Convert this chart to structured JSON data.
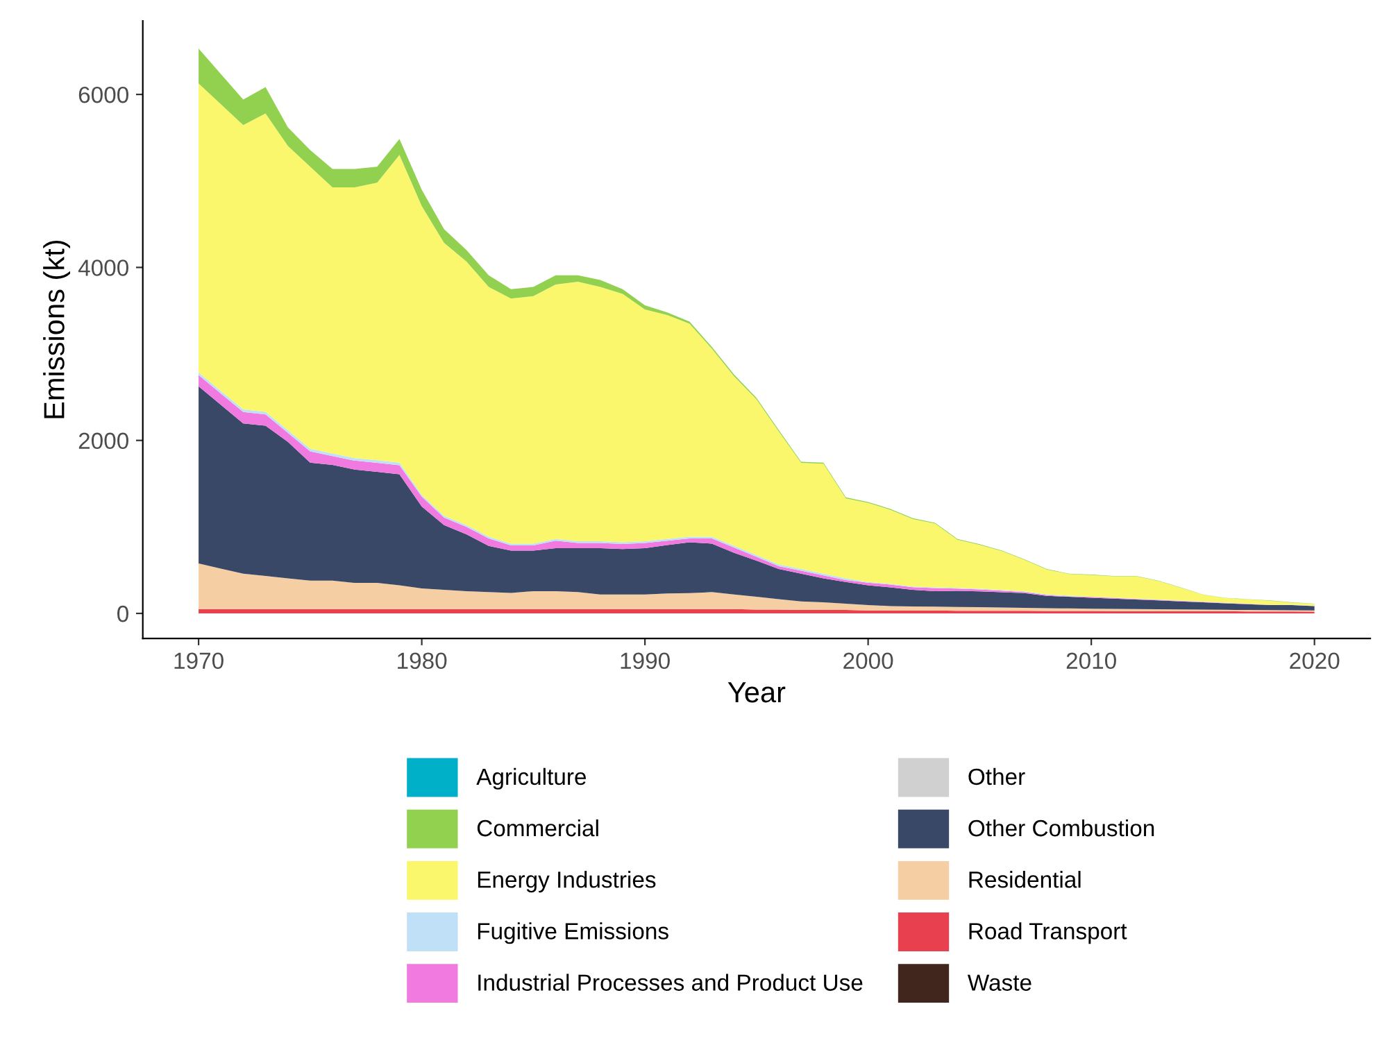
{
  "chart_data": {
    "type": "area",
    "stacked": true,
    "xlabel": "Year",
    "ylabel": "Emissions (kt)",
    "x": [
      1970,
      1971,
      1972,
      1973,
      1974,
      1975,
      1976,
      1977,
      1978,
      1979,
      1980,
      1981,
      1982,
      1983,
      1984,
      1985,
      1986,
      1987,
      1988,
      1989,
      1990,
      1991,
      1992,
      1993,
      1994,
      1995,
      1996,
      1997,
      1998,
      1999,
      2000,
      2001,
      2002,
      2003,
      2004,
      2005,
      2006,
      2007,
      2008,
      2009,
      2010,
      2011,
      2012,
      2013,
      2014,
      2015,
      2016,
      2017,
      2018,
      2019,
      2020
    ],
    "series": [
      {
        "name": "Waste",
        "color": "#40261c",
        "values": [
          null,
          null,
          null,
          null,
          null,
          null,
          null,
          null,
          null,
          null,
          null,
          null,
          null,
          null,
          null,
          null,
          null,
          null,
          null,
          null,
          null,
          null,
          null,
          null,
          null,
          null,
          null,
          null,
          null,
          null,
          null,
          null,
          null,
          null,
          null,
          null,
          null,
          null,
          null,
          null,
          null,
          null,
          null,
          null,
          null,
          null,
          null,
          null,
          null,
          null,
          null
        ]
      },
      {
        "name": "Road Transport",
        "color": "#e8404f",
        "values": [
          50,
          50,
          50,
          50,
          50,
          50,
          50,
          50,
          50,
          50,
          50,
          50,
          50,
          50,
          50,
          50,
          50,
          50,
          50,
          50,
          50,
          50,
          50,
          50,
          50,
          45,
          45,
          40,
          40,
          40,
          35,
          35,
          35,
          35,
          30,
          30,
          30,
          30,
          28,
          28,
          28,
          26,
          26,
          25,
          25,
          24,
          24,
          23,
          22,
          22,
          20
        ]
      },
      {
        "name": "Residential",
        "color": "#f5cfa3",
        "values": [
          527,
          468,
          410,
          383,
          356,
          330,
          330,
          303,
          303,
          276,
          239,
          223,
          207,
          196,
          186,
          207,
          207,
          196,
          169,
          169,
          169,
          180,
          185,
          196,
          169,
          147,
          120,
          99,
          88,
          72,
          61,
          50,
          45,
          43,
          45,
          42,
          38,
          35,
          32,
          30,
          27,
          26,
          24,
          23,
          21,
          20,
          18,
          17,
          16,
          14,
          15
        ]
      },
      {
        "name": "Other Combustion",
        "color": "#3a4868",
        "values": [
          2049,
          1893,
          1737,
          1737,
          1578,
          1363,
          1336,
          1310,
          1283,
          1283,
          946,
          748,
          657,
          535,
          491,
          470,
          497,
          508,
          535,
          526,
          535,
          561,
          588,
          561,
          481,
          417,
          348,
          321,
          278,
          252,
          230,
          215,
          193,
          179,
          185,
          183,
          177,
          170,
          143,
          134,
          126,
          119,
          110,
          102,
          93,
          84,
          75,
          67,
          58,
          60,
          50
        ]
      },
      {
        "name": "Other",
        "color": "#d0d0d0",
        "values": [
          null,
          null,
          null,
          null,
          null,
          null,
          null,
          null,
          null,
          null,
          null,
          null,
          null,
          null,
          null,
          null,
          null,
          null,
          null,
          null,
          null,
          null,
          null,
          null,
          null,
          null,
          null,
          null,
          null,
          null,
          null,
          null,
          null,
          null,
          null,
          null,
          null,
          null,
          null,
          null,
          null,
          null,
          null,
          null,
          null,
          null,
          null,
          null,
          null,
          null,
          null
        ]
      },
      {
        "name": "Industrial Processes and Product Use",
        "color": "#f07ae0",
        "values": [
          130,
          131,
          131,
          131,
          103,
          131,
          104,
          103,
          104,
          104,
          114,
          87,
          87,
          86,
          60,
          60,
          87,
          60,
          60,
          58,
          60,
          50,
          44,
          60,
          61,
          44,
          33,
          33,
          34,
          22,
          30,
          34,
          29,
          35,
          27,
          22,
          17,
          12,
          9,
          5,
          9,
          8,
          7,
          7,
          6,
          5,
          4,
          3,
          2,
          1,
          1
        ]
      },
      {
        "name": "Fugitive Emissions",
        "color": "#c0e0f8",
        "values": [
          30,
          30,
          30,
          30,
          30,
          30,
          30,
          30,
          30,
          30,
          20,
          20,
          20,
          20,
          20,
          20,
          20,
          20,
          20,
          20,
          20,
          20,
          20,
          20,
          20,
          20,
          20,
          20,
          20,
          20,
          8,
          8,
          8,
          8,
          8,
          8,
          8,
          8,
          8,
          8,
          3,
          3,
          3,
          3,
          3,
          3,
          3,
          3,
          3,
          3,
          3
        ]
      },
      {
        "name": "Energy Industries",
        "color": "#fbf76c",
        "values": [
          3341,
          3314,
          3288,
          3449,
          3288,
          3261,
          3075,
          3129,
          3210,
          3557,
          3341,
          3155,
          3048,
          2888,
          2834,
          2861,
          2941,
          3000,
          2941,
          2871,
          2679,
          2588,
          2463,
          2173,
          1959,
          1802,
          1536,
          1227,
          1270,
          924,
          914,
          856,
          782,
          738,
          558,
          507,
          450,
          364,
          288,
          250,
          251,
          247,
          259,
          216,
          148,
          80,
          54,
          49,
          46,
          25,
          21
        ]
      },
      {
        "name": "Commercial",
        "color": "#92d050",
        "values": [
          403,
          349,
          294,
          305,
          215,
          192,
          213,
          213,
          185,
          186,
          187,
          160,
          133,
          134,
          107,
          107,
          107,
          75,
          80,
          54,
          48,
          31,
          23,
          20,
          19,
          16,
          15,
          13,
          13,
          12,
          10,
          10,
          10,
          10,
          8,
          8,
          7,
          6,
          5,
          5,
          5,
          4,
          4,
          4,
          4,
          3,
          3,
          3,
          3,
          3,
          2
        ]
      },
      {
        "name": "Agriculture",
        "color": "#00b0c8",
        "values": [
          null,
          null,
          null,
          null,
          null,
          null,
          null,
          null,
          null,
          null,
          null,
          null,
          null,
          null,
          null,
          null,
          null,
          null,
          null,
          null,
          null,
          null,
          null,
          null,
          null,
          null,
          null,
          null,
          null,
          null,
          null,
          null,
          null,
          null,
          null,
          null,
          null,
          null,
          null,
          null,
          null,
          null,
          null,
          null,
          null,
          null,
          null,
          null,
          null,
          null,
          null
        ]
      }
    ],
    "xlim": [
      1967.5,
      2022.5
    ],
    "ylim": [
      -290,
      6850
    ],
    "xticks": [
      1970,
      1980,
      1990,
      2000,
      2010,
      2020
    ],
    "yticks": [
      0,
      2000,
      4000,
      6000
    ],
    "grid": false,
    "legend": "bottom"
  }
}
